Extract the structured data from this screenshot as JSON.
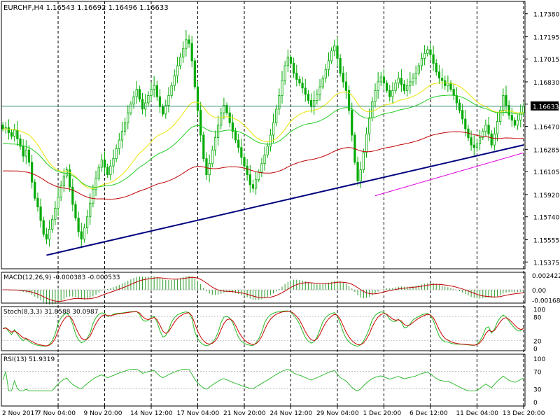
{
  "chart_data": {
    "type": "candlestick",
    "symbol_header": "EURCHF,H4",
    "header_ohlc": [
      "1.16543",
      "1.16692",
      "1.16496",
      "1.16633"
    ],
    "current_price": "1.16633",
    "price_ticks": [
      "1.17380",
      "1.17195",
      "1.17015",
      "1.16830",
      "1.16650",
      "1.16470",
      "1.16285",
      "1.16105",
      "1.15920",
      "1.15740",
      "1.15555",
      "1.15375"
    ],
    "price_range": [
      1.1532,
      1.1748
    ],
    "x_labels": [
      "2 Nov 2017",
      "7 Nov 04:00",
      "9 Nov 20:00",
      "14 Nov 12:00",
      "17 Nov 04:00",
      "21 Nov 20:00",
      "24 Nov 12:00",
      "29 Nov 04:00",
      "1 Dec 20:00",
      "6 Dec 12:00",
      "11 Dec 04:00",
      "13 Dec 20:00"
    ],
    "closes": [
      1.1645,
      1.1646,
      1.1642,
      1.1639,
      1.1644,
      1.1637,
      1.1631,
      1.1623,
      1.1628,
      1.1618,
      1.1602,
      1.1589,
      1.1582,
      1.1571,
      1.156,
      1.1556,
      1.1564,
      1.1572,
      1.1581,
      1.159,
      1.1599,
      1.1607,
      1.1612,
      1.1598,
      1.1584,
      1.1573,
      1.1562,
      1.1556,
      1.1565,
      1.1574,
      1.1585,
      1.1596,
      1.1605,
      1.1614,
      1.162,
      1.1614,
      1.1608,
      1.1615,
      1.1621,
      1.1629,
      1.1636,
      1.1643,
      1.165,
      1.1658,
      1.1665,
      1.1671,
      1.1677,
      1.1669,
      1.1661,
      1.1666,
      1.1672,
      1.1677,
      1.168,
      1.1671,
      1.1663,
      1.1657,
      1.1664,
      1.1672,
      1.168,
      1.1688,
      1.1696,
      1.1703,
      1.171,
      1.1717,
      1.1714,
      1.17,
      1.1679,
      1.166,
      1.164,
      1.1621,
      1.1608,
      1.1617,
      1.1628,
      1.1638,
      1.1648,
      1.1658,
      1.1664,
      1.1658,
      1.165,
      1.1643,
      1.1636,
      1.163,
      1.1622,
      1.1615,
      1.1608,
      1.16,
      1.1597,
      1.1604,
      1.161,
      1.1617,
      1.1624,
      1.1631,
      1.164,
      1.165,
      1.1661,
      1.1672,
      1.1684,
      1.1696,
      1.1703,
      1.1698,
      1.169,
      1.1685,
      1.1682,
      1.1678,
      1.1673,
      1.1668,
      1.1663,
      1.1668,
      1.1673,
      1.1679,
      1.1686,
      1.1693,
      1.17,
      1.1708,
      1.1712,
      1.1702,
      1.169,
      1.1683,
      1.1676,
      1.166,
      1.164,
      1.1618,
      1.1603,
      1.1612,
      1.1626,
      1.1641,
      1.1654,
      1.1667,
      1.1676,
      1.1683,
      1.1687,
      1.1682,
      1.1676,
      1.1671,
      1.1676,
      1.1682,
      1.1686,
      1.1681,
      1.1676,
      1.168,
      1.1683,
      1.1686,
      1.169,
      1.1696,
      1.1702,
      1.1706,
      1.1709,
      1.1705,
      1.1698,
      1.1691,
      1.1686,
      1.1684,
      1.168,
      1.1682,
      1.1677,
      1.1672,
      1.1666,
      1.166,
      1.1653,
      1.1645,
      1.1638,
      1.1632,
      1.163,
      1.1633,
      1.1638,
      1.1643,
      1.1648,
      1.1641,
      1.1632,
      1.1641,
      1.1651,
      1.166,
      1.1672,
      1.1664,
      1.1656,
      1.1652,
      1.1648,
      1.1652,
      1.1658,
      1.16633
    ],
    "trendline": {
      "from": [
        15,
        1.1543
      ],
      "to": [
        179,
        1.1632
      ]
    },
    "horizontal_line": 1.16633,
    "indicators": [
      {
        "label": "MACD(12,26,9) -0.000383 -0.000533",
        "ticks": [
          "0.002422",
          "0.00",
          "-0.001685"
        ],
        "range": [
          -0.0022,
          0.0029
        ]
      },
      {
        "label": "Stoch(8,3,3) 31.8588 30.0987",
        "ticks": [
          "100",
          "80",
          "20",
          "0"
        ],
        "range": [
          -6,
          106
        ]
      },
      {
        "label": "RSI(13) 51.9319",
        "ticks": [
          "100",
          "70",
          "30",
          "0"
        ],
        "range": [
          -10,
          110
        ]
      }
    ],
    "colors": {
      "up": "#00aa00",
      "down": "#00aa00",
      "ema_fast": "#e6e600",
      "ema_mid": "#22cc22",
      "ema_slow": "#c00000",
      "ema_long": "#e000e0",
      "trendline": "#000080",
      "macd_hist": "#2a9a2a",
      "macd_signal": "#c00000",
      "stoch_k": "#22bb22",
      "stoch_d": "#cc0000",
      "rsi": "#33bb33"
    }
  }
}
